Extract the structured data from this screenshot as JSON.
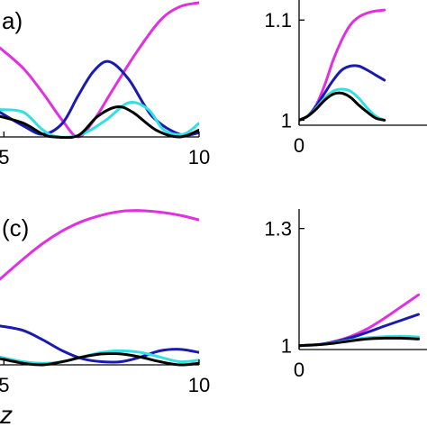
{
  "chart_data": [
    {
      "panel": "a",
      "type": "line",
      "label_text": "a)",
      "xlim": [
        4.9,
        10
      ],
      "ylim": [
        0,
        1
      ],
      "x_tick_labels": [
        {
          "value": 5,
          "label": "5"
        },
        {
          "value": 10,
          "label": "10"
        }
      ],
      "y_tick_labels": [],
      "series": [
        {
          "color": "#e030e0",
          "x": [
            4.9,
            5.5,
            6,
            6.5,
            6.9,
            7.3,
            7.8,
            8.4,
            9,
            9.5,
            10
          ],
          "y": [
            0.65,
            0.5,
            0.32,
            0.12,
            0.0,
            0.12,
            0.35,
            0.62,
            0.85,
            0.95,
            0.98
          ]
        },
        {
          "color": "#1a1ab0",
          "x": [
            4.9,
            5.5,
            6,
            6.5,
            6.9,
            7.3,
            7.7,
            8.2,
            8.8,
            9.5,
            10
          ],
          "y": [
            0.18,
            0.08,
            0.02,
            0.1,
            0.3,
            0.48,
            0.55,
            0.42,
            0.15,
            0.02,
            0.03
          ]
        },
        {
          "color": "#33e0e0",
          "x": [
            4.9,
            5.5,
            6,
            6.4,
            7.0,
            7.6,
            8.2,
            8.7,
            9.1,
            9.6,
            10
          ],
          "y": [
            0.2,
            0.18,
            0.05,
            0.0,
            0.02,
            0.12,
            0.25,
            0.2,
            0.05,
            0.02,
            0.1
          ]
        },
        {
          "color": "#000000",
          "x": [
            4.9,
            5.5,
            6,
            6.3,
            6.9,
            7.4,
            7.9,
            8.3,
            8.9,
            9.5,
            10
          ],
          "y": [
            0.15,
            0.1,
            0.02,
            0.0,
            0.01,
            0.15,
            0.22,
            0.18,
            0.05,
            0.0,
            0.05
          ]
        }
      ]
    },
    {
      "panel": "b",
      "type": "line",
      "label_text": "",
      "xlim": [
        0,
        1.5
      ],
      "ylim": [
        0.995,
        1.12
      ],
      "x_tick_labels": [
        {
          "value": 0,
          "label": "0"
        }
      ],
      "y_tick_labels": [
        {
          "value": 1,
          "label": "1"
        },
        {
          "value": 1.1,
          "label": "1.1"
        }
      ],
      "series": [
        {
          "color": "#e030e0",
          "x": [
            0,
            0.1,
            0.2,
            0.3,
            0.4,
            0.5,
            0.6,
            0.7,
            0.8,
            0.9,
            1.0
          ],
          "y": [
            1.0,
            1.004,
            1.015,
            1.035,
            1.06,
            1.08,
            1.095,
            1.103,
            1.107,
            1.109,
            1.11
          ]
        },
        {
          "color": "#1a1ab0",
          "x": [
            0,
            0.1,
            0.2,
            0.3,
            0.4,
            0.5,
            0.6,
            0.7,
            0.8,
            0.9,
            1.0
          ],
          "y": [
            1.0,
            1.004,
            1.014,
            1.027,
            1.04,
            1.05,
            1.054,
            1.054,
            1.05,
            1.045,
            1.04
          ]
        },
        {
          "color": "#33e0e0",
          "x": [
            0,
            0.1,
            0.2,
            0.3,
            0.4,
            0.5,
            0.6,
            0.7,
            0.8,
            0.9,
            1.0
          ],
          "y": [
            1.0,
            1.004,
            1.012,
            1.022,
            1.029,
            1.031,
            1.029,
            1.022,
            1.012,
            1.004,
            1.0
          ]
        },
        {
          "color": "#000000",
          "x": [
            0,
            0.1,
            0.2,
            0.3,
            0.4,
            0.5,
            0.6,
            0.7,
            0.8,
            0.9,
            1.0
          ],
          "y": [
            1.0,
            1.004,
            1.011,
            1.02,
            1.026,
            1.027,
            1.023,
            1.015,
            1.008,
            1.002,
            1.0
          ]
        }
      ]
    },
    {
      "panel": "c",
      "type": "line",
      "label_text": "(c)",
      "xlim": [
        4.9,
        10
      ],
      "ylim": [
        0,
        1
      ],
      "x_tick_labels": [
        {
          "value": 5,
          "label": "5"
        },
        {
          "value": 10,
          "label": "10"
        }
      ],
      "y_tick_labels": [],
      "series": [
        {
          "color": "#e030e0",
          "x": [
            4.9,
            5.5,
            6,
            6.5,
            7,
            7.5,
            8,
            8.5,
            9,
            9.5,
            10
          ],
          "y": [
            0.55,
            0.68,
            0.78,
            0.86,
            0.92,
            0.96,
            0.985,
            0.99,
            0.98,
            0.96,
            0.93
          ]
        },
        {
          "color": "#1a1ab0",
          "x": [
            4.9,
            5.5,
            6,
            6.5,
            7,
            7.5,
            8,
            8.5,
            9,
            9.5,
            10
          ],
          "y": [
            0.25,
            0.22,
            0.16,
            0.09,
            0.04,
            0.02,
            0.02,
            0.05,
            0.09,
            0.1,
            0.08
          ]
        },
        {
          "color": "#33e0e0",
          "x": [
            4.9,
            5.5,
            6,
            6.5,
            7,
            7.5,
            8,
            8.5,
            9,
            9.5,
            10
          ],
          "y": [
            0.05,
            0.02,
            0.01,
            0.02,
            0.05,
            0.08,
            0.09,
            0.08,
            0.05,
            0.02,
            0.03
          ]
        },
        {
          "color": "#000000",
          "x": [
            4.9,
            5.5,
            6,
            6.5,
            7,
            7.5,
            8,
            8.5,
            9,
            9.5,
            10
          ],
          "y": [
            0.04,
            0.01,
            0.0,
            0.02,
            0.05,
            0.07,
            0.07,
            0.05,
            0.02,
            0.0,
            0.01
          ]
        }
      ]
    },
    {
      "panel": "d",
      "type": "line",
      "label_text": "",
      "xlim": [
        0,
        1.5
      ],
      "ylim": [
        0.99,
        1.35
      ],
      "x_tick_labels": [
        {
          "value": 0,
          "label": "0"
        }
      ],
      "y_tick_labels": [
        {
          "value": 1,
          "label": "1"
        },
        {
          "value": 1.3,
          "label": "1.3"
        }
      ],
      "series": [
        {
          "color": "#e030e0",
          "x": [
            0,
            0.2,
            0.4,
            0.6,
            0.8,
            1.0,
            1.2,
            1.4
          ],
          "y": [
            1.0,
            1.002,
            1.01,
            1.023,
            1.043,
            1.07,
            1.1,
            1.13
          ]
        },
        {
          "color": "#1a1ab0",
          "x": [
            0,
            0.2,
            0.4,
            0.6,
            0.8,
            1.0,
            1.2,
            1.4
          ],
          "y": [
            1.0,
            1.002,
            1.009,
            1.02,
            1.034,
            1.05,
            1.065,
            1.08
          ]
        },
        {
          "color": "#33e0e0",
          "x": [
            0,
            0.2,
            0.4,
            0.6,
            0.8,
            1.0,
            1.2,
            1.4
          ],
          "y": [
            1.0,
            1.002,
            1.007,
            1.014,
            1.02,
            1.023,
            1.024,
            1.022
          ]
        },
        {
          "color": "#000000",
          "x": [
            0,
            0.2,
            0.4,
            0.6,
            0.8,
            1.0,
            1.2,
            1.4
          ],
          "y": [
            1.0,
            1.002,
            1.006,
            1.012,
            1.017,
            1.019,
            1.019,
            1.017
          ]
        }
      ]
    }
  ],
  "shared_xlabel": "z"
}
